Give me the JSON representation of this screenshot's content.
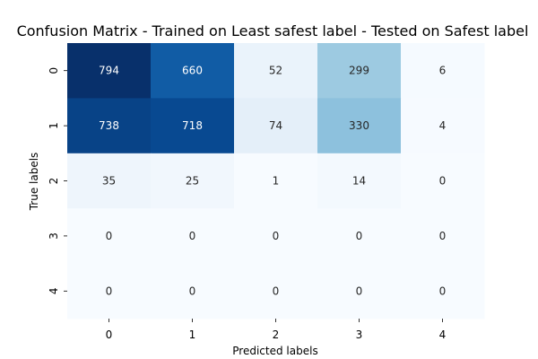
{
  "chart_data": {
    "type": "heatmap",
    "title": "Confusion Matrix - Trained on Least safest label - Tested on Safest label",
    "xlabel": "Predicted labels",
    "ylabel": "True labels",
    "x_categories": [
      "0",
      "1",
      "2",
      "3",
      "4"
    ],
    "y_categories": [
      "0",
      "1",
      "2",
      "3",
      "4"
    ],
    "values": [
      [
        794,
        660,
        52,
        299,
        6
      ],
      [
        738,
        718,
        74,
        330,
        4
      ],
      [
        35,
        25,
        1,
        14,
        0
      ],
      [
        0,
        0,
        0,
        0,
        0
      ],
      [
        0,
        0,
        0,
        0,
        0
      ]
    ],
    "colormap": "Blues",
    "colorbar": false,
    "value_range": [
      0,
      794
    ],
    "colors": {
      "low": "#f7fbff",
      "high": "#08306b",
      "text_dark": "#262626",
      "text_light": "#ffffff"
    }
  }
}
